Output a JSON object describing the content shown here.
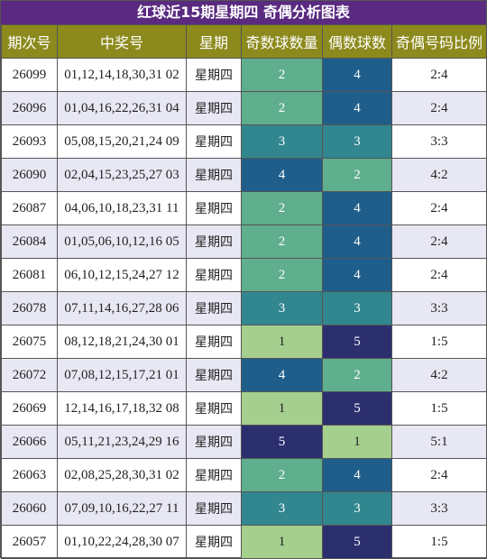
{
  "title": "红球近15期星期四 奇偶分析图表",
  "table": {
    "header": [
      "期次号",
      "中奖号",
      "星期",
      "奇数球数量",
      "偶数球数",
      "奇偶号码比例"
    ],
    "rows": [
      [
        "26099",
        "01,12,14,18,30,31 02",
        "星期四",
        2,
        4,
        "2:4"
      ],
      [
        "26096",
        "01,04,16,22,26,31 04",
        "星期四",
        2,
        4,
        "2:4"
      ],
      [
        "26093",
        "05,08,15,20,21,24 09",
        "星期四",
        3,
        3,
        "3:3"
      ],
      [
        "26090",
        "02,04,15,23,25,27 03",
        "星期四",
        4,
        2,
        "4:2"
      ],
      [
        "26087",
        "04,06,10,18,23,31 11",
        "星期四",
        2,
        4,
        "2:4"
      ],
      [
        "26084",
        "01,05,06,10,12,16 05",
        "星期四",
        2,
        4,
        "2:4"
      ],
      [
        "26081",
        "06,10,12,15,24,27 12",
        "星期四",
        2,
        4,
        "2:4"
      ],
      [
        "26078",
        "07,11,14,16,27,28 06",
        "星期四",
        3,
        3,
        "3:3"
      ],
      [
        "26075",
        "08,12,18,21,24,30 01",
        "星期四",
        1,
        5,
        "1:5"
      ],
      [
        "26072",
        "07,08,12,15,17,21 01",
        "星期四",
        4,
        2,
        "4:2"
      ],
      [
        "26069",
        "12,14,16,17,18,32 08",
        "星期四",
        1,
        5,
        "1:5"
      ],
      [
        "26066",
        "05,11,21,23,24,29 16",
        "星期四",
        5,
        1,
        "5:1"
      ],
      [
        "26063",
        "02,08,25,28,30,31 02",
        "星期四",
        2,
        4,
        "2:4"
      ],
      [
        "26060",
        "07,09,10,16,22,27 11",
        "星期四",
        3,
        3,
        "3:3"
      ],
      [
        "26057",
        "01,10,22,24,28,30 07",
        "星期四",
        1,
        5,
        "1:5"
      ]
    ]
  }
}
